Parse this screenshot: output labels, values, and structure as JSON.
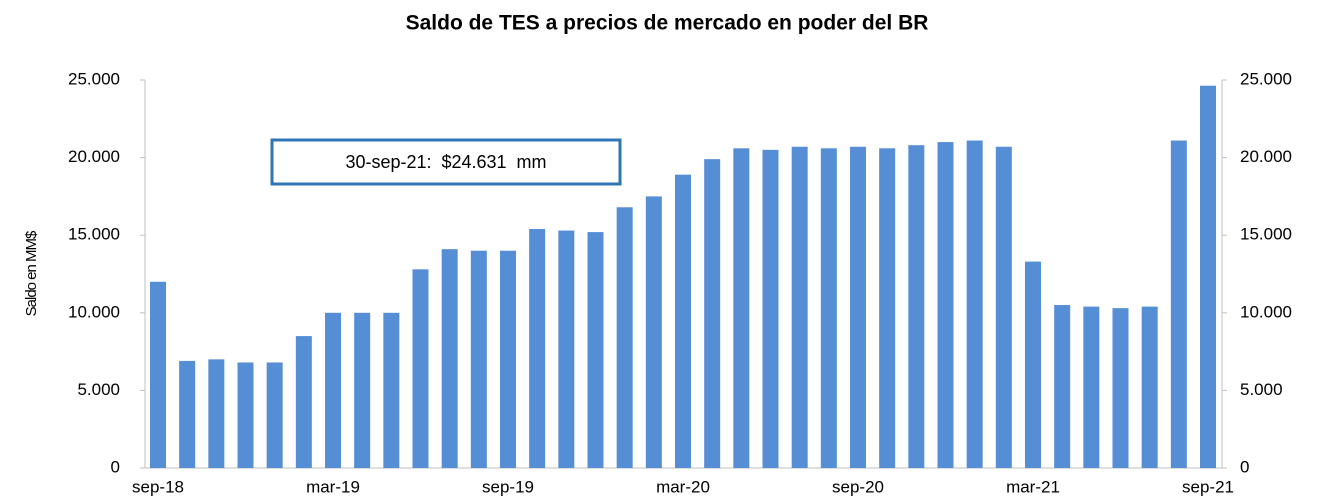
{
  "chart_data": {
    "type": "bar",
    "title": "Saldo de TES a precios de mercado en poder del BR",
    "y_label": "Saldo en MM$",
    "annotation": "30-sep-21:  $24.631  mm",
    "categories": [
      "sep-18",
      null,
      null,
      null,
      null,
      null,
      "mar-19",
      null,
      null,
      null,
      null,
      null,
      "sep-19",
      null,
      null,
      null,
      null,
      null,
      "mar-20",
      null,
      null,
      null,
      null,
      null,
      "sep-20",
      null,
      null,
      null,
      null,
      null,
      "mar-21",
      null,
      null,
      null,
      null,
      null,
      "sep-21"
    ],
    "values": [
      12000,
      6900,
      7000,
      6800,
      6800,
      8500,
      10000,
      10000,
      10000,
      12800,
      14100,
      14000,
      14000,
      15400,
      15300,
      15200,
      16800,
      17500,
      18900,
      19900,
      20600,
      20500,
      20700,
      20600,
      20700,
      20600,
      20800,
      21000,
      21100,
      20700,
      13300,
      10500,
      10400,
      10300,
      10400,
      21100,
      24631
    ],
    "color": "#558ed5",
    "ylim": [
      0,
      25000
    ],
    "yticks": [
      0,
      {
        "value": 5000,
        "label": "5.000"
      },
      {
        "value": 10000,
        "label": "10.000"
      },
      {
        "value": 15000,
        "label": "15.000"
      },
      {
        "value": 20000,
        "label": "20.000"
      },
      {
        "value": 25000,
        "label": "25.000"
      }
    ],
    "y2lim": [
      0,
      25000
    ],
    "y2ticks": [
      0,
      {
        "value": 5000,
        "label": "5.000"
      },
      {
        "value": 10000,
        "label": "10.000"
      },
      {
        "value": 15000,
        "label": "15.000"
      },
      {
        "value": 20000,
        "label": "20.000"
      },
      {
        "value": 25000,
        "label": "25.000"
      }
    ],
    "grid": false
  }
}
